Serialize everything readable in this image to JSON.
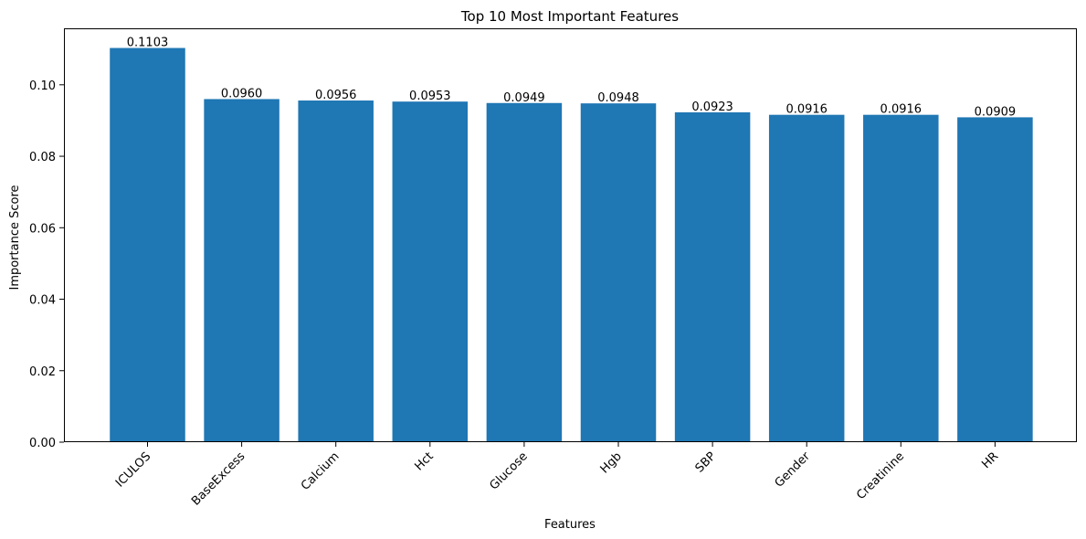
{
  "chart_data": {
    "type": "bar",
    "title": "Top 10 Most Important Features",
    "xlabel": "Features",
    "ylabel": "Importance Score",
    "categories": [
      "ICULOS",
      "BaseExcess",
      "Calcium",
      "Hct",
      "Glucose",
      "Hgb",
      "SBP",
      "Gender",
      "Creatinine",
      "HR"
    ],
    "values": [
      0.1103,
      0.096,
      0.0956,
      0.0953,
      0.0949,
      0.0948,
      0.0923,
      0.0916,
      0.0916,
      0.0909
    ],
    "data_labels": [
      "0.1103",
      "0.0960",
      "0.0956",
      "0.0953",
      "0.0949",
      "0.0948",
      "0.0923",
      "0.0916",
      "0.0916",
      "0.0909"
    ],
    "ylim": [
      0,
      0.1158
    ],
    "yticks": [
      0.0,
      0.02,
      0.04,
      0.06,
      0.08,
      0.1
    ],
    "ytick_labels": [
      "0.00",
      "0.02",
      "0.04",
      "0.06",
      "0.08",
      "0.10"
    ],
    "grid": false,
    "bar_color": "#1f77b4"
  }
}
